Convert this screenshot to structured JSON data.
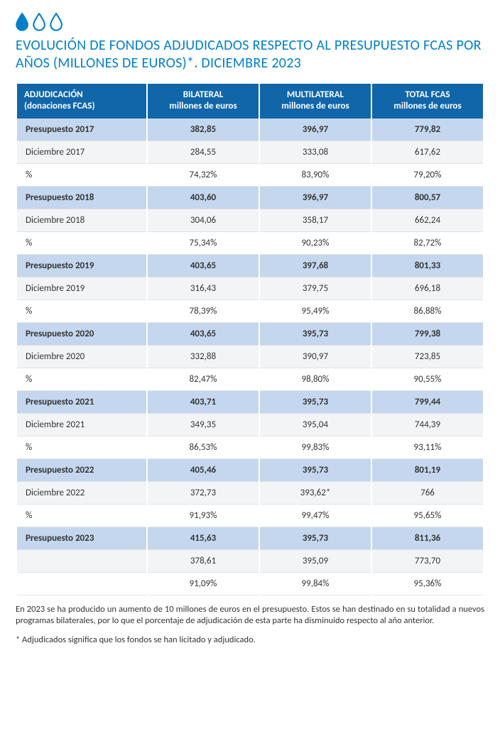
{
  "drops": {
    "count": 3,
    "stroke": "#0080c8",
    "fill_first": "#0080c8",
    "fill_rest": "none",
    "size": 26
  },
  "title": "EVOLUCIÓN DE FONDOS ADJUDICADOS RESPECTO AL PRESUPUESTO FCAS POR AÑOS (MILLONES DE EUROS)*. DICIEMBRE 2023",
  "headers": {
    "c0a": "ADJUDICACIÓN",
    "c0b": "(donaciones FCAS)",
    "c1a": "BILATERAL",
    "c1b": "millones de euros",
    "c2a": "MULTILATERAL",
    "c2b": "millones de euros",
    "c3a": "TOTAL FCAS",
    "c3b": "millones de euros"
  },
  "rows": [
    {
      "type": "budget",
      "label": "Presupuesto 2017",
      "bilateral": "382,85",
      "multilateral": "396,97",
      "total": "779,82"
    },
    {
      "type": "light",
      "label": "Diciembre 2017",
      "bilateral": "284,55",
      "multilateral": "333,08",
      "total": "617,62"
    },
    {
      "type": "white",
      "label": "%",
      "bilateral": "74,32%",
      "multilateral": "83,90%",
      "total": "79,20%"
    },
    {
      "type": "budget",
      "label": "Presupuesto 2018",
      "bilateral": "403,60",
      "multilateral": "396,97",
      "total": "800,57"
    },
    {
      "type": "light",
      "label": "Diciembre 2018",
      "bilateral": "304,06",
      "multilateral": "358,17",
      "total": "662,24"
    },
    {
      "type": "white",
      "label": "%",
      "bilateral": "75,34%",
      "multilateral": "90,23%",
      "total": "82,72%"
    },
    {
      "type": "budget",
      "label": "Presupuesto 2019",
      "bilateral": "403,65",
      "multilateral": "397,68",
      "total": "801,33"
    },
    {
      "type": "light",
      "label": "Diciembre 2019",
      "bilateral": "316,43",
      "multilateral": "379,75",
      "total": "696,18"
    },
    {
      "type": "white",
      "label": "%",
      "bilateral": "78,39%",
      "multilateral": "95,49%",
      "total": "86,88%"
    },
    {
      "type": "budget",
      "label": "Presupuesto 2020",
      "bilateral": "403,65",
      "multilateral": "395,73",
      "total": "799,38"
    },
    {
      "type": "light",
      "label": "Diciembre 2020",
      "bilateral": "332,88",
      "multilateral": "390,97",
      "total": "723,85"
    },
    {
      "type": "white",
      "label": "%",
      "bilateral": "82,47%",
      "multilateral": "98,80%",
      "total": "90,55%"
    },
    {
      "type": "budget",
      "label": "Presupuesto 2021",
      "bilateral": "403,71",
      "multilateral": "395,73",
      "total": "799,44"
    },
    {
      "type": "light",
      "label": "Diciembre 2021",
      "bilateral": "349,35",
      "multilateral": "395,04",
      "total": "744,39"
    },
    {
      "type": "white",
      "label": "%",
      "bilateral": "86,53%",
      "multilateral": "99,83%",
      "total": "93,11%"
    },
    {
      "type": "budget",
      "label": "Presupuesto 2022",
      "bilateral": "405,46",
      "multilateral": "395,73",
      "total": "801,19"
    },
    {
      "type": "light",
      "label": "Diciembre 2022",
      "bilateral": "372,73",
      "multilateral": "393,62*",
      "total": "766"
    },
    {
      "type": "white",
      "label": "%",
      "bilateral": "91,93%",
      "multilateral": "99,47%",
      "total": "95,65%"
    },
    {
      "type": "budget",
      "label": "Presupuesto 2023",
      "bilateral": "415,63",
      "multilateral": "395,73",
      "total": "811,36"
    },
    {
      "type": "light",
      "label": "",
      "bilateral": "378,61",
      "multilateral": "395,09",
      "total": "773,70"
    },
    {
      "type": "white",
      "label": "",
      "bilateral": "91,09%",
      "multilateral": "99,84%",
      "total": "95,36%"
    }
  ],
  "notes": {
    "p1": "En 2023 se ha producido un aumento de 10 millones de euros en el presupuesto. Estos se han destinado en su totalidad a nuevos programas bilaterales, por lo que el porcentaje de adjudicación de esta parte ha disminuido respecto al año anterior.",
    "p2": "* Adjudicados significa que los fondos se han licitado y adjudicado."
  },
  "colors": {
    "header_bg": "#1066a9",
    "header_text": "#ffffff",
    "budget_bg": "#c4d7ee",
    "light_bg": "#f3f4f6",
    "white_bg": "#ffffff",
    "title_color": "#0080c8",
    "border_color": "#e3e3e3"
  }
}
